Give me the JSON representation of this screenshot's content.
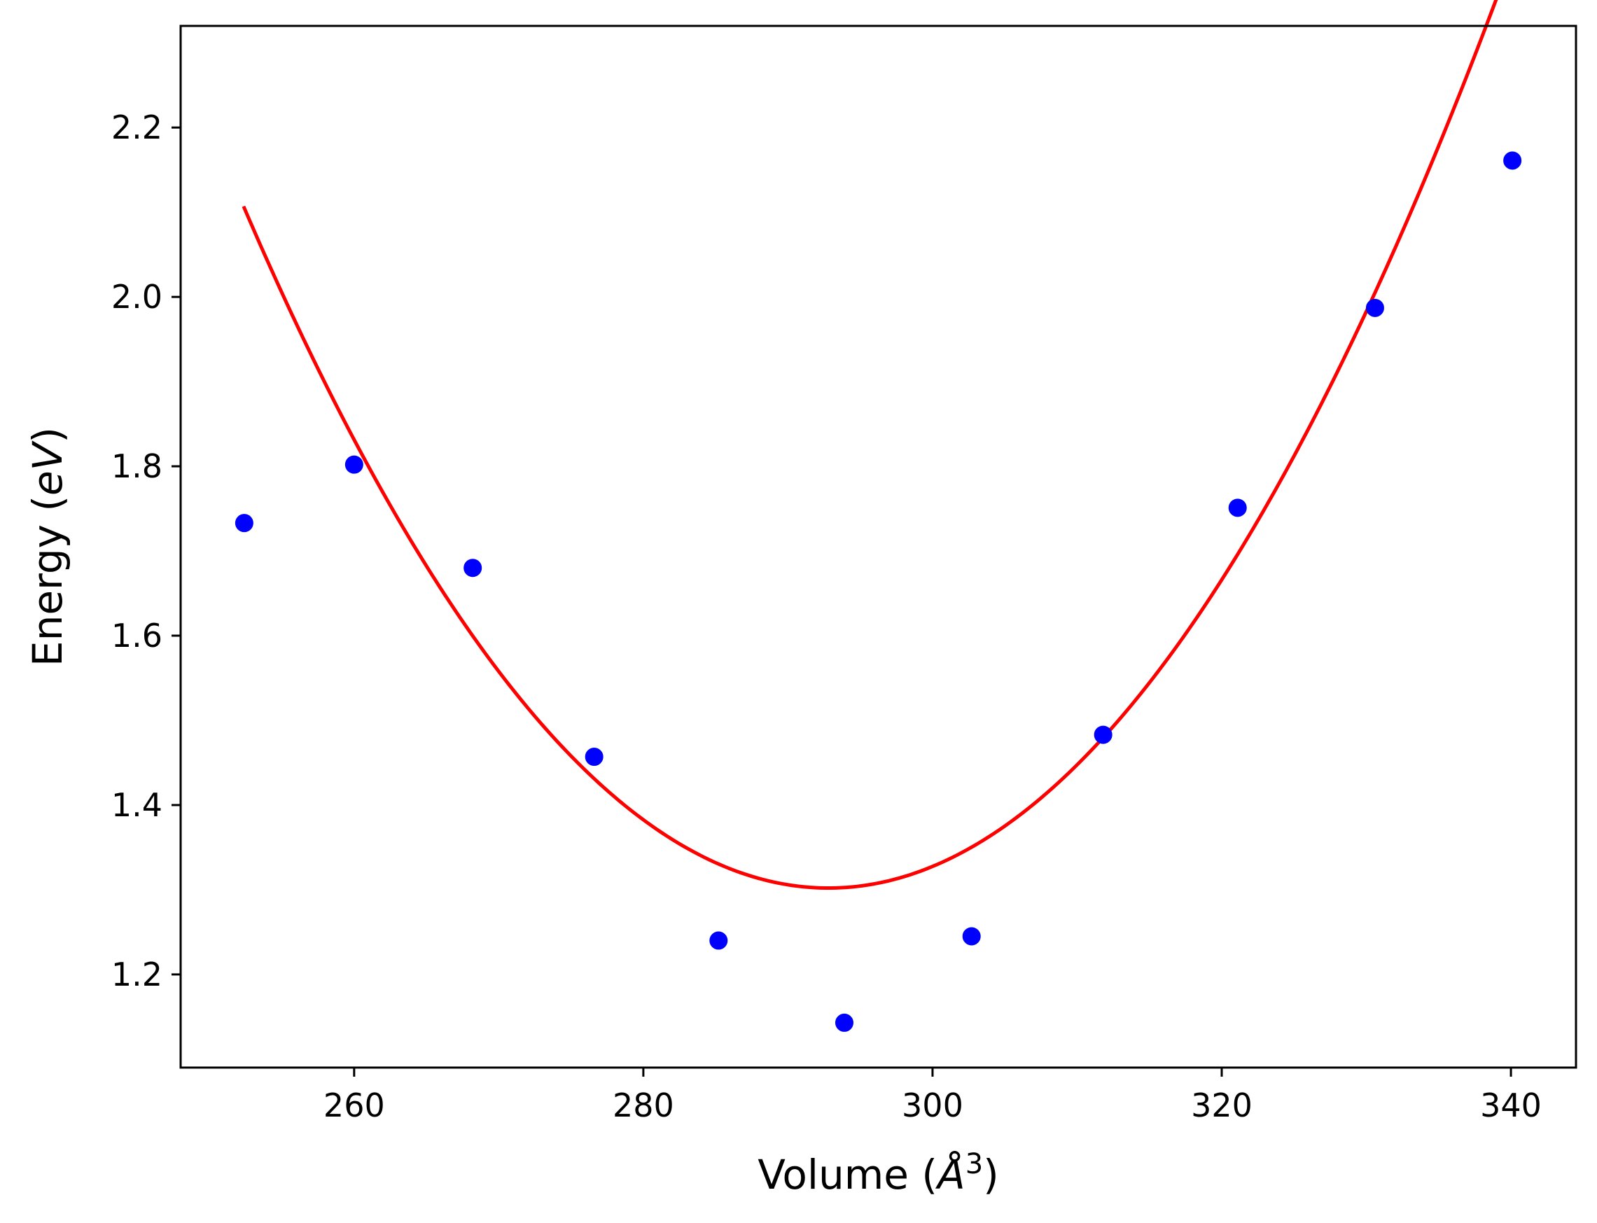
{
  "chart_data": {
    "type": "scatter",
    "title": "",
    "xlabel": "Volume ($\\AA^3$)",
    "ylabel": "Energy ($eV$)",
    "xlim": [
      248,
      344.5
    ],
    "ylim": [
      1.09,
      2.32
    ],
    "grid": false,
    "legend": "none",
    "x_ticks": [
      260,
      280,
      300,
      320,
      340
    ],
    "x_tick_labels": [
      "260",
      "280",
      "300",
      "320",
      "340"
    ],
    "y_ticks": [
      1.2,
      1.4,
      1.6,
      1.8,
      2.0,
      2.2
    ],
    "y_tick_labels": [
      "1.2",
      "1.4",
      "1.6",
      "1.8",
      "2.0",
      "2.2"
    ],
    "series": [
      {
        "kind": "points",
        "color": "#0000ff",
        "x": [
          252.4,
          260.0,
          268.2,
          276.6,
          285.2,
          293.9,
          302.7,
          311.8,
          321.1,
          330.6,
          340.1
        ],
        "y": [
          1.733,
          1.802,
          1.68,
          1.457,
          1.24,
          1.143,
          1.245,
          1.483,
          1.751,
          1.987,
          2.161
        ]
      },
      {
        "kind": "fit-line",
        "color": "#ff0000",
        "x_range": [
          252.4,
          340.1
        ],
        "curve": {
          "form": "quadratic",
          "vertex_x": 292.8,
          "vertex_y": 1.302,
          "coefficient": 0.000492
        }
      }
    ]
  }
}
